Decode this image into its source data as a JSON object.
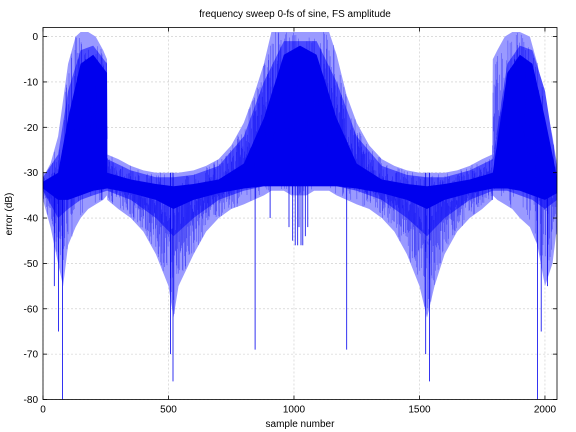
{
  "chart_data": {
    "type": "area",
    "title": "frequency sweep 0-fs of sine, FS amplitude",
    "xlabel": "sample number",
    "ylabel": "error (dB)",
    "xlim": [
      0,
      2048
    ],
    "ylim": [
      -80,
      2
    ],
    "xticks": [
      "0",
      "500",
      "1000",
      "1500",
      "2000"
    ],
    "xtick_values": [
      0,
      500,
      1000,
      1500,
      2000
    ],
    "yticks": [
      "0",
      "-10",
      "-20",
      "-30",
      "-40",
      "-50",
      "-60",
      "-70",
      "-80"
    ],
    "ytick_values": [
      0,
      -10,
      -20,
      -30,
      -40,
      -50,
      -60,
      -70,
      -80
    ],
    "grid": true,
    "colors": {
      "dark": "#0000ee",
      "mid": "#4a4aff",
      "light": "#9a9aff"
    },
    "series": [
      {
        "band": "outer envelope (upper, lower)",
        "x": [
          0,
          10,
          30,
          60,
          80,
          100,
          130,
          150,
          180,
          210,
          240,
          255,
          256,
          300,
          350,
          400,
          450,
          500,
          520,
          540,
          600,
          650,
          700,
          750,
          800,
          840,
          880,
          910,
          930,
          960,
          990,
          1000,
          1024,
          1050,
          1080,
          1110,
          1140,
          1170,
          1210,
          1250,
          1300,
          1350,
          1400,
          1450,
          1500,
          1530,
          1560,
          1600,
          1650,
          1700,
          1750,
          1790,
          1792,
          1810,
          1840,
          1870,
          1900,
          1940,
          1970,
          2000,
          2030,
          2048
        ],
        "upper": [
          -30,
          -30,
          -28,
          -22,
          -14,
          -6,
          0,
          1,
          1,
          0,
          -3,
          -5,
          -26,
          -27,
          -28.5,
          -29.5,
          -30,
          -30,
          -30,
          -30,
          -29.5,
          -28.5,
          -27,
          -24,
          -19,
          -13,
          -6,
          1,
          1,
          1,
          1,
          1,
          1,
          1,
          1,
          1,
          1,
          -4,
          -13,
          -19,
          -24,
          -27,
          -28.5,
          -29.5,
          -30,
          -30,
          -30,
          -30,
          -29.5,
          -28.5,
          -27,
          -26,
          -5,
          -3,
          0,
          1,
          1,
          0,
          -6,
          -14,
          -22,
          -28
        ],
        "lower": [
          -36,
          -38,
          -42,
          -50,
          -55,
          -46,
          -42,
          -40,
          -38,
          -37,
          -36,
          -35,
          -36,
          -38,
          -40,
          -43,
          -48,
          -55,
          -62,
          -55,
          -48,
          -43,
          -40,
          -38,
          -37,
          -36,
          -35,
          -34,
          -34,
          -34,
          -35,
          -35,
          -35,
          -35,
          -34,
          -34,
          -34,
          -35,
          -36,
          -37,
          -38,
          -40,
          -43,
          -48,
          -55,
          -62,
          -55,
          -48,
          -43,
          -40,
          -38,
          -36,
          -35,
          -36,
          -37,
          -38,
          -40,
          -42,
          -46,
          -55,
          -50,
          -42
        ]
      },
      {
        "band": "mid band (upper, lower)",
        "x": [
          0,
          60,
          100,
          150,
          200,
          255,
          256,
          350,
          450,
          520,
          600,
          700,
          800,
          880,
          960,
          1024,
          1090,
          1170,
          1250,
          1350,
          1450,
          1530,
          1600,
          1700,
          1792,
          1850,
          1900,
          1950,
          2000,
          2048
        ],
        "upper": [
          -31,
          -26,
          -12,
          -3,
          -2,
          -6,
          -27,
          -29.5,
          -31,
          -31,
          -30.5,
          -28.5,
          -22,
          -10,
          -1,
          -1,
          -1,
          -10,
          -22,
          -28.5,
          -30.5,
          -31,
          -31,
          -29.5,
          -27,
          -6,
          -2,
          -3,
          -12,
          -29
        ],
        "lower": [
          -34,
          -40,
          -38,
          -36,
          -35,
          -34,
          -34,
          -36,
          -40,
          -44,
          -40,
          -36,
          -34,
          -33,
          -33,
          -33,
          -33,
          -33,
          -34,
          -36,
          -40,
          -44,
          -40,
          -36,
          -34,
          -34,
          -35,
          -36,
          -38,
          -36
        ]
      },
      {
        "band": "dark core (upper, lower)",
        "x": [
          0,
          60,
          100,
          150,
          200,
          255,
          256,
          350,
          450,
          520,
          600,
          700,
          800,
          880,
          960,
          1024,
          1090,
          1170,
          1250,
          1350,
          1450,
          1530,
          1600,
          1700,
          1792,
          1850,
          1900,
          1950,
          2000,
          2048
        ],
        "upper": [
          -32,
          -30,
          -18,
          -6,
          -4,
          -8,
          -30,
          -31.5,
          -32.5,
          -33,
          -32.5,
          -31.5,
          -28,
          -18,
          -4,
          -2,
          -4,
          -18,
          -28,
          -31.5,
          -32.5,
          -33,
          -32.5,
          -31.5,
          -30,
          -8,
          -4,
          -6,
          -18,
          -31
        ],
        "lower": [
          -33.5,
          -36,
          -36,
          -35,
          -34,
          -33.5,
          -33.5,
          -34.5,
          -36,
          -38,
          -36,
          -34.5,
          -33.5,
          -33,
          -33,
          -33,
          -33,
          -33,
          -33.5,
          -34.5,
          -36,
          -38,
          -36,
          -34.5,
          -33.5,
          -33.5,
          -34,
          -35,
          -36,
          -34.5
        ]
      }
    ],
    "spikes": {
      "x": [
        45,
        62,
        78,
        170,
        232,
        508,
        518,
        845,
        905,
        980,
        995,
        1005,
        1015,
        1020,
        1028,
        1035,
        1045,
        1055,
        1210,
        1525,
        1540,
        1790,
        1880,
        1970,
        1985,
        2010
      ],
      "y": [
        -55,
        -65,
        -80,
        -5,
        -36,
        -70,
        -76,
        -69,
        -40,
        -42,
        -45,
        -46,
        -46,
        -42,
        -46,
        -46,
        -44,
        -42,
        -69,
        -70,
        -76,
        -36,
        -5,
        -80,
        -65,
        -55
      ]
    }
  }
}
